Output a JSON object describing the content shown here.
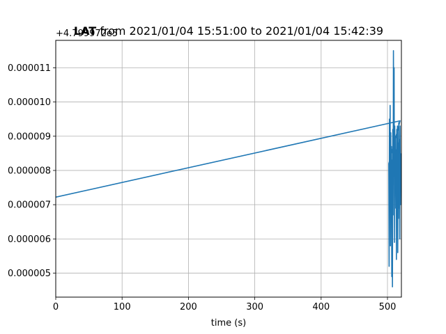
{
  "chart_data": {
    "type": "line",
    "title_bold": "LAT",
    "title": "from 2021/01/04 15:51:00 to 2021/01/04 15:42:39",
    "xlabel": "time (s)",
    "ylabel": "",
    "y_offset_label": "+4.799972e5",
    "xlim": [
      0,
      521
    ],
    "ylim": [
      4.3e-06,
      1.18e-05
    ],
    "xticks": [
      0,
      100,
      200,
      300,
      400,
      500
    ],
    "yticks": [
      5e-06,
      6e-06,
      7e-06,
      8e-06,
      9e-06,
      1e-05,
      1.1e-05
    ],
    "ytick_labels": [
      "0.000005",
      "0.000006",
      "0.000007",
      "0.000008",
      "0.000009",
      "0.000010",
      "0.000011"
    ],
    "grid": true,
    "line_color": "#1f77b4",
    "series": [
      {
        "x": [
          0,
          519,
          502,
          502.5,
          503,
          503.5,
          504,
          504.5,
          505,
          505.5,
          506,
          506.5,
          507,
          507.5,
          508,
          508.5,
          509,
          509.5,
          510,
          510.5,
          511,
          511.5,
          512,
          512.5,
          513,
          513.5,
          514,
          514.5,
          515,
          515.5,
          516,
          516.5,
          517,
          517.5,
          518,
          518.5,
          519,
          519.5,
          520
        ],
        "y": [
          7.22e-06,
          9.45e-06,
          8.2e-06,
          5.2e-06,
          9.5e-06,
          6.8e-06,
          9.9e-06,
          5.8e-06,
          9.1e-06,
          7.2e-06,
          8.7e-06,
          4.9e-06,
          8.3e-06,
          4.6e-06,
          9.2e-06,
          6.7e-06,
          1.15e-05,
          8.8e-06,
          1.1e-05,
          5.9e-06,
          9.3e-06,
          7.8e-06,
          9e-06,
          6.9e-06,
          8.6e-06,
          5.4e-06,
          9.2e-06,
          7.1e-06,
          9.3e-06,
          5.6e-06,
          8.8e-06,
          6.6e-06,
          9.4e-06,
          6.9e-06,
          8.9e-06,
          6e-06,
          9.3e-06,
          7e-06,
          8.5e-06
        ]
      }
    ]
  }
}
